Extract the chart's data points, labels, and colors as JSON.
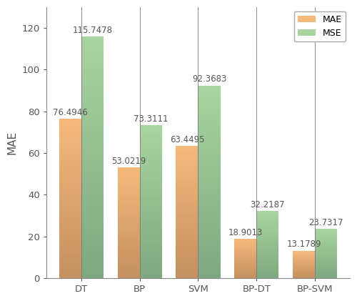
{
  "categories": [
    "DT",
    "BP",
    "SVM",
    "BP-DT",
    "BP-SVM"
  ],
  "mae_values": [
    76.4946,
    53.0219,
    63.4495,
    18.9013,
    13.1789
  ],
  "mse_values": [
    115.7478,
    73.3111,
    92.3683,
    32.2187,
    23.7317
  ],
  "mae_label": "MAE",
  "mse_label": "MSE",
  "ylabel": "MAE",
  "ylim": [
    0,
    130
  ],
  "yticks": [
    0,
    20,
    40,
    60,
    80,
    100,
    120
  ],
  "bar_width": 0.38,
  "mae_color_top": "#F5B97A",
  "mae_color_bottom": "#C49060",
  "mse_color_top": "#A8D4A0",
  "mse_color_bottom": "#80A880",
  "legend_loc": "upper right",
  "label_fontsize": 8.5,
  "tick_fontsize": 9.5,
  "axis_label_fontsize": 11,
  "background_color": "#ffffff",
  "figure_bg": "#ffffff",
  "spine_color": "#888888",
  "text_color": "#555555"
}
